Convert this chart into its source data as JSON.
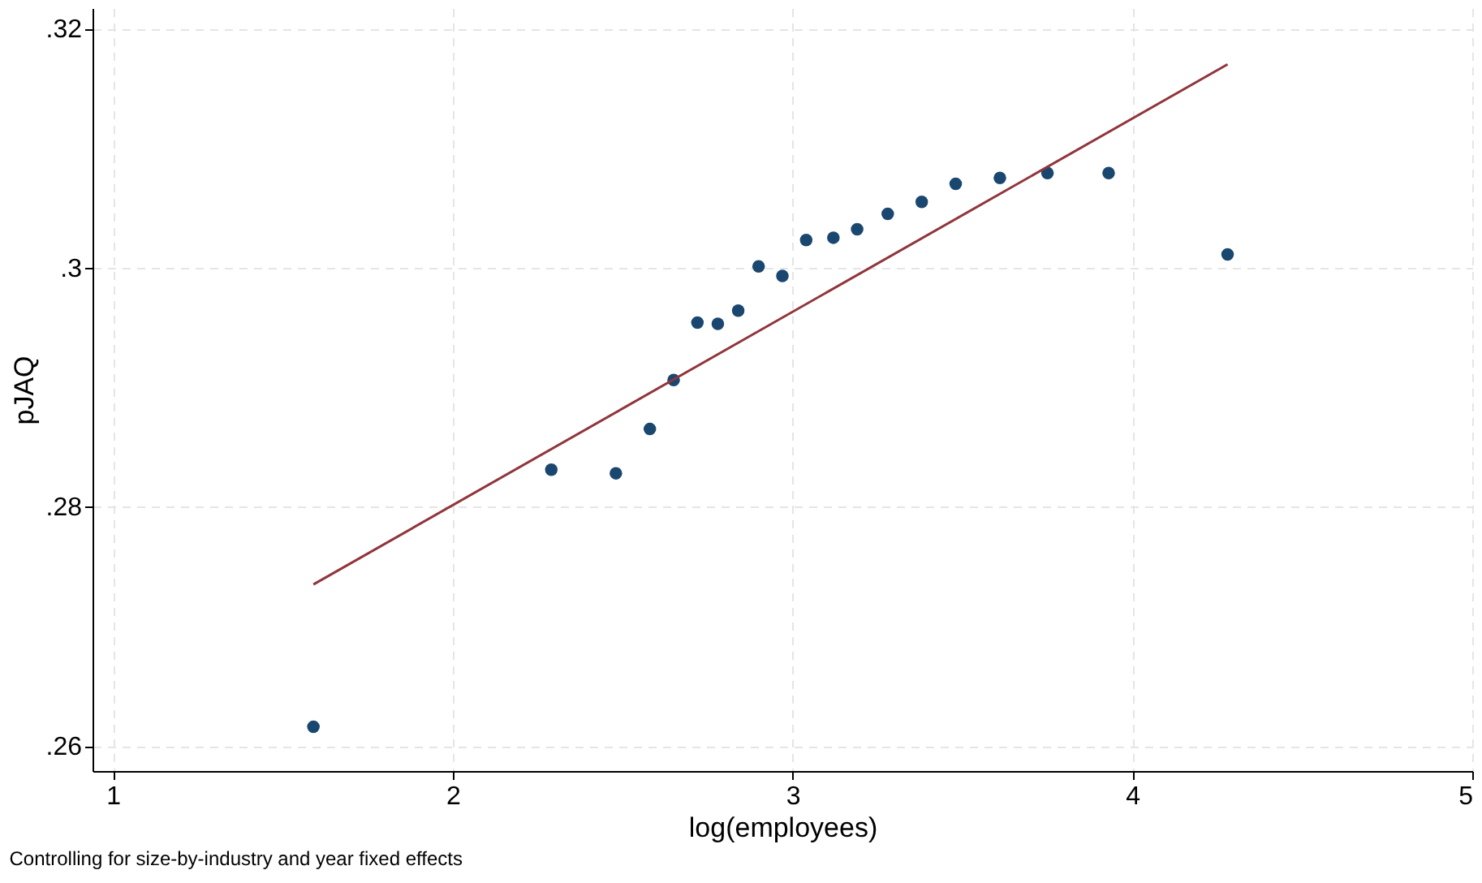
{
  "chart_data": {
    "type": "scatter",
    "xlabel": "log(employees)",
    "ylabel": "pJAQ",
    "annotations": [
      "Controlling for size-by-industry and year fixed effects"
    ],
    "xlim": [
      0.94,
      5.0
    ],
    "ylim": [
      0.2579,
      0.3217
    ],
    "xticks": [
      1,
      2,
      3,
      4,
      5
    ],
    "yticks": [
      {
        "value": 0.26,
        "label": ".26"
      },
      {
        "value": 0.28,
        "label": ".28"
      },
      {
        "value": 0.3,
        "label": ".3"
      },
      {
        "value": 0.32,
        "label": ".32"
      }
    ],
    "grid": true,
    "series": [
      {
        "color": "#1a476f",
        "marker": "circle",
        "x": [
          1.59,
          2.29,
          2.48,
          2.58,
          2.65,
          2.72,
          2.78,
          2.84,
          2.9,
          2.97,
          3.04,
          3.12,
          3.19,
          3.28,
          3.38,
          3.48,
          3.61,
          3.75,
          3.93,
          4.28
        ],
        "values": [
          0.2616,
          0.2831,
          0.2828,
          0.2865,
          0.2906,
          0.2954,
          0.2953,
          0.2964,
          0.3001,
          0.2993,
          0.3023,
          0.3025,
          0.3032,
          0.3045,
          0.3055,
          0.307,
          0.3075,
          0.3079,
          0.3079,
          0.3011
        ]
      },
      {
        "type": "line",
        "color": "#90353b",
        "marker": "none",
        "line_style": "solid",
        "x": [
          1.59,
          4.28
        ],
        "values": [
          0.2735,
          0.317
        ]
      }
    ]
  }
}
